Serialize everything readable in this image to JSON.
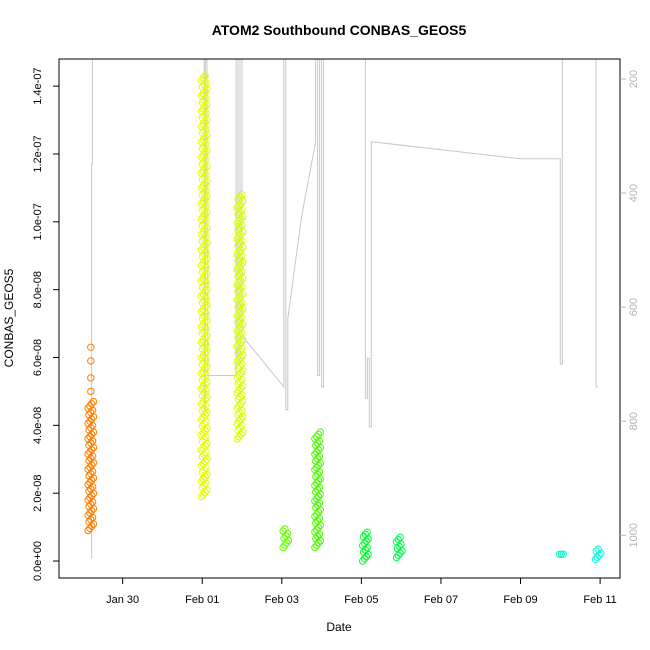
{
  "chart_data": {
    "type": "scatter",
    "title": "ATOM2 Southbound CONBAS_GEOS5",
    "xlabel": "Date",
    "ylabel": "CONBAS_GEOS5",
    "x_unit": "days since Jan 28",
    "xlim": [
      0.4,
      14.5
    ],
    "ylim": [
      -5e-09,
      1.48e-07
    ],
    "x_ticks": [
      {
        "label": "Jan 30",
        "value": 2
      },
      {
        "label": "Feb 01",
        "value": 4
      },
      {
        "label": "Feb 03",
        "value": 6
      },
      {
        "label": "Feb 05",
        "value": 8
      },
      {
        "label": "Feb 07",
        "value": 10
      },
      {
        "label": "Feb 09",
        "value": 12
      },
      {
        "label": "Feb 11",
        "value": 14
      }
    ],
    "y_ticks": [
      {
        "label": "0.0e+00",
        "value": 0
      },
      {
        "label": "2.0e-08",
        "value": 2e-08
      },
      {
        "label": "4.0e-08",
        "value": 4e-08
      },
      {
        "label": "6.0e-08",
        "value": 6e-08
      },
      {
        "label": "8.0e-08",
        "value": 8e-08
      },
      {
        "label": "1.0e-07",
        "value": 1e-07
      },
      {
        "label": "1.2e-07",
        "value": 1.2e-07
      },
      {
        "label": "1.4e-07",
        "value": 1.4e-07
      }
    ],
    "y2lim": [
      1075,
      165
    ],
    "y2_ticks": [
      {
        "label": "200",
        "value": 200
      },
      {
        "label": "400",
        "value": 400
      },
      {
        "label": "600",
        "value": 600
      },
      {
        "label": "800",
        "value": 800
      },
      {
        "label": "1000",
        "value": 1000
      }
    ],
    "groups": [
      {
        "x": 1.2,
        "ymin": 9e-09,
        "ymax": 4.7e-08,
        "outliers": [
          5e-08,
          5.4e-08,
          5.9e-08,
          6.3e-08
        ],
        "color": "#ff7f00"
      },
      {
        "x": 4.05,
        "ymin": 1.9e-08,
        "ymax": 1.43e-07,
        "outliers": [],
        "color": "#e5ff00"
      },
      {
        "x": 4.95,
        "ymin": 3.6e-08,
        "ymax": 1.08e-07,
        "outliers": [],
        "color": "#d9ff00"
      },
      {
        "x": 6.1,
        "ymin": 4e-09,
        "ymax": 9.5e-09,
        "outliers": [],
        "color": "#66ff00"
      },
      {
        "x": 6.9,
        "ymin": 4e-09,
        "ymax": 3.8e-08,
        "outliers": [],
        "color": "#4dff00"
      },
      {
        "x": 8.1,
        "ymin": 0.0,
        "ymax": 8.5e-09,
        "outliers": [],
        "color": "#00ff33"
      },
      {
        "x": 8.95,
        "ymin": 1e-09,
        "ymax": 7e-09,
        "outliers": [],
        "color": "#00ff4d"
      },
      {
        "x": 13.05,
        "ymin": 2e-09,
        "ymax": 2e-09,
        "outliers": [],
        "color": "#00ffcc"
      },
      {
        "x": 13.95,
        "ymin": 5e-10,
        "ymax": 3.5e-09,
        "outliers": [],
        "color": "#00ffd9"
      }
    ],
    "pressure_trace": [
      [
        1.2,
        1040
      ],
      [
        1.22,
        1040
      ],
      [
        1.22,
        350
      ],
      [
        1.24,
        350
      ],
      [
        1.24,
        165
      ],
      [
        4.05,
        165
      ],
      [
        4.05,
        780
      ],
      [
        4.08,
        780
      ],
      [
        4.08,
        165
      ],
      [
        4.12,
        165
      ],
      [
        4.12,
        500
      ],
      [
        4.14,
        500
      ],
      [
        4.14,
        720
      ],
      [
        4.8,
        720
      ],
      [
        4.85,
        720
      ],
      [
        4.85,
        165
      ],
      [
        4.9,
        165
      ],
      [
        4.9,
        700
      ],
      [
        4.95,
        700
      ],
      [
        4.95,
        165
      ],
      [
        5.0,
        165
      ],
      [
        5.0,
        650
      ],
      [
        6.05,
        740
      ],
      [
        6.05,
        165
      ],
      [
        6.1,
        165
      ],
      [
        6.1,
        780
      ],
      [
        6.15,
        780
      ],
      [
        6.15,
        620
      ],
      [
        6.5,
        440
      ],
      [
        6.85,
        310
      ],
      [
        6.85,
        165
      ],
      [
        6.9,
        165
      ],
      [
        6.9,
        720
      ],
      [
        6.95,
        720
      ],
      [
        6.95,
        165
      ],
      [
        7.0,
        165
      ],
      [
        7.0,
        740
      ],
      [
        7.05,
        740
      ],
      [
        7.05,
        165
      ],
      [
        8.1,
        165
      ],
      [
        8.1,
        760
      ],
      [
        8.15,
        760
      ],
      [
        8.15,
        690
      ],
      [
        8.2,
        690
      ],
      [
        8.2,
        810
      ],
      [
        8.25,
        810
      ],
      [
        8.25,
        310
      ],
      [
        12.0,
        340
      ],
      [
        13.0,
        340
      ],
      [
        13.0,
        700
      ],
      [
        13.05,
        700
      ],
      [
        13.05,
        165
      ],
      [
        13.9,
        165
      ],
      [
        13.9,
        740
      ],
      [
        13.95,
        740
      ],
      [
        13.95,
        740
      ]
    ]
  }
}
